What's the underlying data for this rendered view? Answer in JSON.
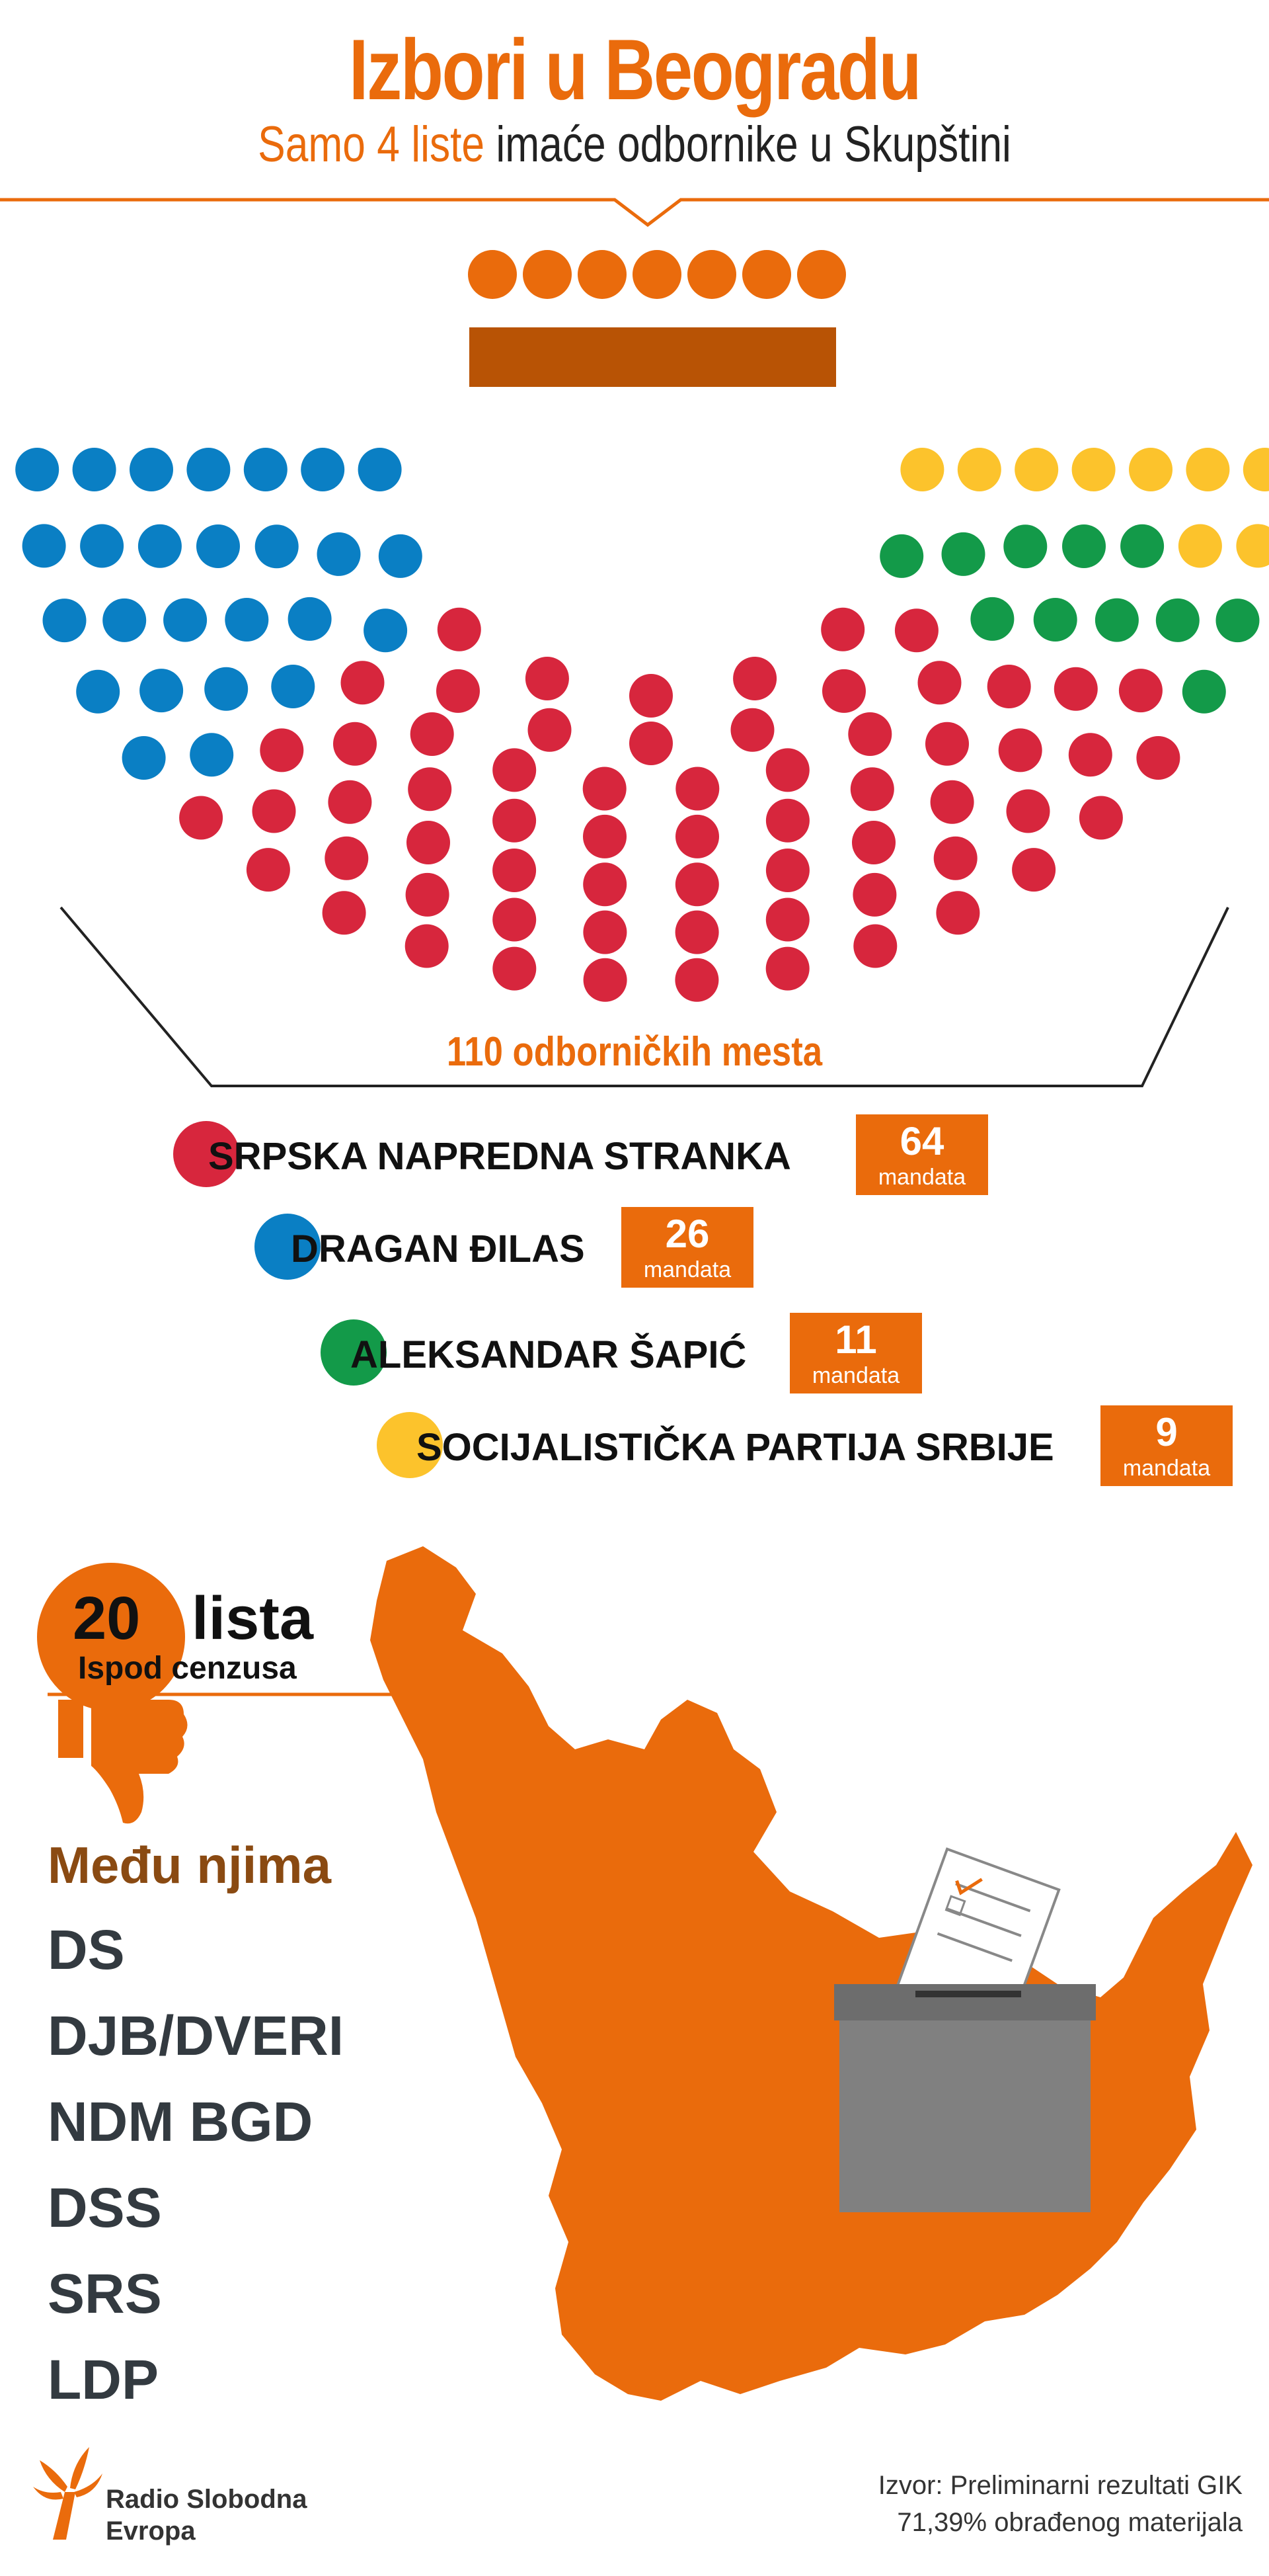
{
  "header": {
    "title": "Izbori u Beogradu",
    "subtitle_highlight": "Samo 4 liste",
    "subtitle_rest": "imaće odbornike u Skupštini"
  },
  "colors": {
    "accent": "#ea6b0c",
    "dark_orange": "#b85305",
    "sns": "#d7263d",
    "djilas": "#0a7fc4",
    "sapic": "#139a49",
    "sps": "#fcc32c",
    "ballot_box": "#808080"
  },
  "chart_data": {
    "type": "parliament",
    "total_label": "110 odborničkih mesta",
    "total": 110,
    "series": [
      {
        "name": "SRPSKA NAPREDNA STRANKA",
        "value": 64,
        "unit": "mandata",
        "color": "#d7263d"
      },
      {
        "name": "DRAGAN ĐILAS",
        "value": 26,
        "unit": "mandata",
        "color": "#0a7fc4"
      },
      {
        "name": "ALEKSANDAR ŠAPIĆ",
        "value": 11,
        "unit": "mandata",
        "color": "#139a49"
      },
      {
        "name": "SOCIJALISTIČKA PARTIJA SRBIJE",
        "value": 9,
        "unit": "mandata",
        "color": "#fcc32c"
      }
    ]
  },
  "below_threshold": {
    "count": "20",
    "word": "lista",
    "sub": "Ispod cenzusa"
  },
  "among_them": {
    "label": "Među njima",
    "parties": [
      "DS",
      "DJB/DVERI",
      "NDM BGD",
      "DSS",
      "SRS",
      "LDP"
    ]
  },
  "footer": {
    "logo_line1": "Radio Slobodna",
    "logo_line2": "Evropa",
    "source_line1": "Izvor: Preliminarni rezultati GIK",
    "source_line2": "71,39% obrađenog materijala"
  }
}
